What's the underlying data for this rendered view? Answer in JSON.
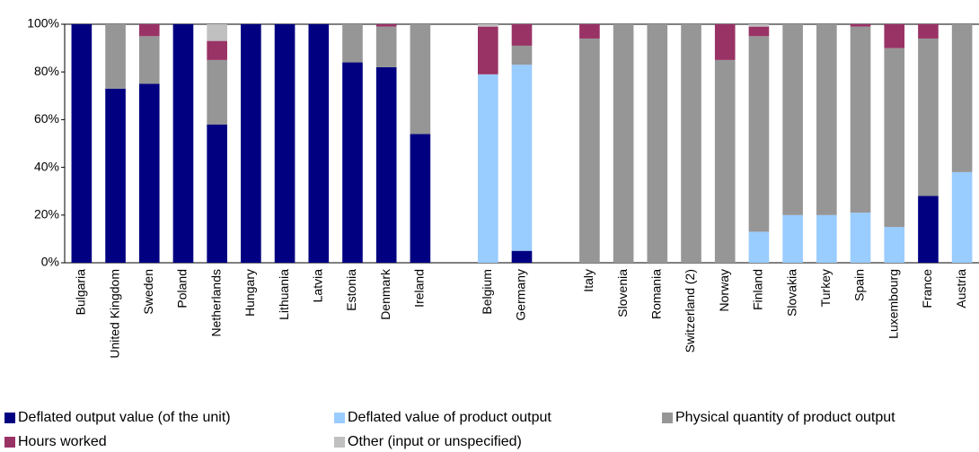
{
  "chart_data": {
    "type": "stacked_bar",
    "categories": [
      "Bulgaria",
      "United Kingdom",
      "Sweden",
      "Poland",
      "Netherlands",
      "Hungary",
      "Lithuania",
      "Latvia",
      "Estonia",
      "Denmark",
      "Ireland",
      null,
      "Belgium",
      "Germany",
      null,
      "Italy",
      "Slovenia",
      "Romania",
      "Switzerland (2)",
      "Norway",
      "Finland",
      "Slovakia",
      "Turkey",
      "Spain",
      "Luxembourg",
      "France",
      "Austria"
    ],
    "series": [
      {
        "name": "Deflated output value (of the unit)",
        "color": "#000080",
        "values": [
          100,
          73,
          75,
          100,
          58,
          100,
          100,
          100,
          84,
          82,
          54,
          null,
          0,
          5,
          null,
          0,
          0,
          0,
          0,
          0,
          0,
          0,
          0,
          0,
          0,
          28,
          0
        ]
      },
      {
        "name": "Deflated value of product output",
        "color": "#99ccff",
        "values": [
          0,
          0,
          0,
          0,
          0,
          0,
          0,
          0,
          0,
          0,
          0,
          null,
          79,
          78,
          null,
          0,
          0,
          0,
          0,
          0,
          13,
          20,
          20,
          21,
          15,
          0,
          38
        ]
      },
      {
        "name": "Physical quantity of product output",
        "color": "#969696",
        "values": [
          0,
          27,
          20,
          0,
          27,
          0,
          0,
          0,
          16,
          17,
          46,
          null,
          0,
          8,
          null,
          94,
          100,
          100,
          100,
          85,
          82,
          80,
          80,
          78,
          75,
          66,
          62
        ]
      },
      {
        "name": "Hours worked",
        "color": "#993366",
        "values": [
          0,
          0,
          5,
          0,
          8,
          0,
          0,
          0,
          0,
          1,
          0,
          null,
          20,
          9,
          null,
          6,
          0,
          0,
          0,
          15,
          4,
          0,
          0,
          1,
          10,
          6,
          0
        ]
      },
      {
        "name": "Other (input or unspecified)",
        "color": "#c0c0c0",
        "values": [
          0,
          0,
          0,
          0,
          7,
          0,
          0,
          0,
          0,
          0,
          0,
          null,
          1,
          0,
          null,
          0,
          0,
          0,
          0,
          0,
          1,
          0,
          0,
          0,
          0,
          0,
          0
        ]
      }
    ],
    "ylim": [
      0,
      100
    ],
    "yticks": [
      {
        "value": 0,
        "label": "0%"
      },
      {
        "value": 20,
        "label": "20%"
      },
      {
        "value": 40,
        "label": "40%"
      },
      {
        "value": 60,
        "label": "60%"
      },
      {
        "value": 80,
        "label": "80%"
      },
      {
        "value": 100,
        "label": "100%"
      }
    ],
    "grid": false
  }
}
